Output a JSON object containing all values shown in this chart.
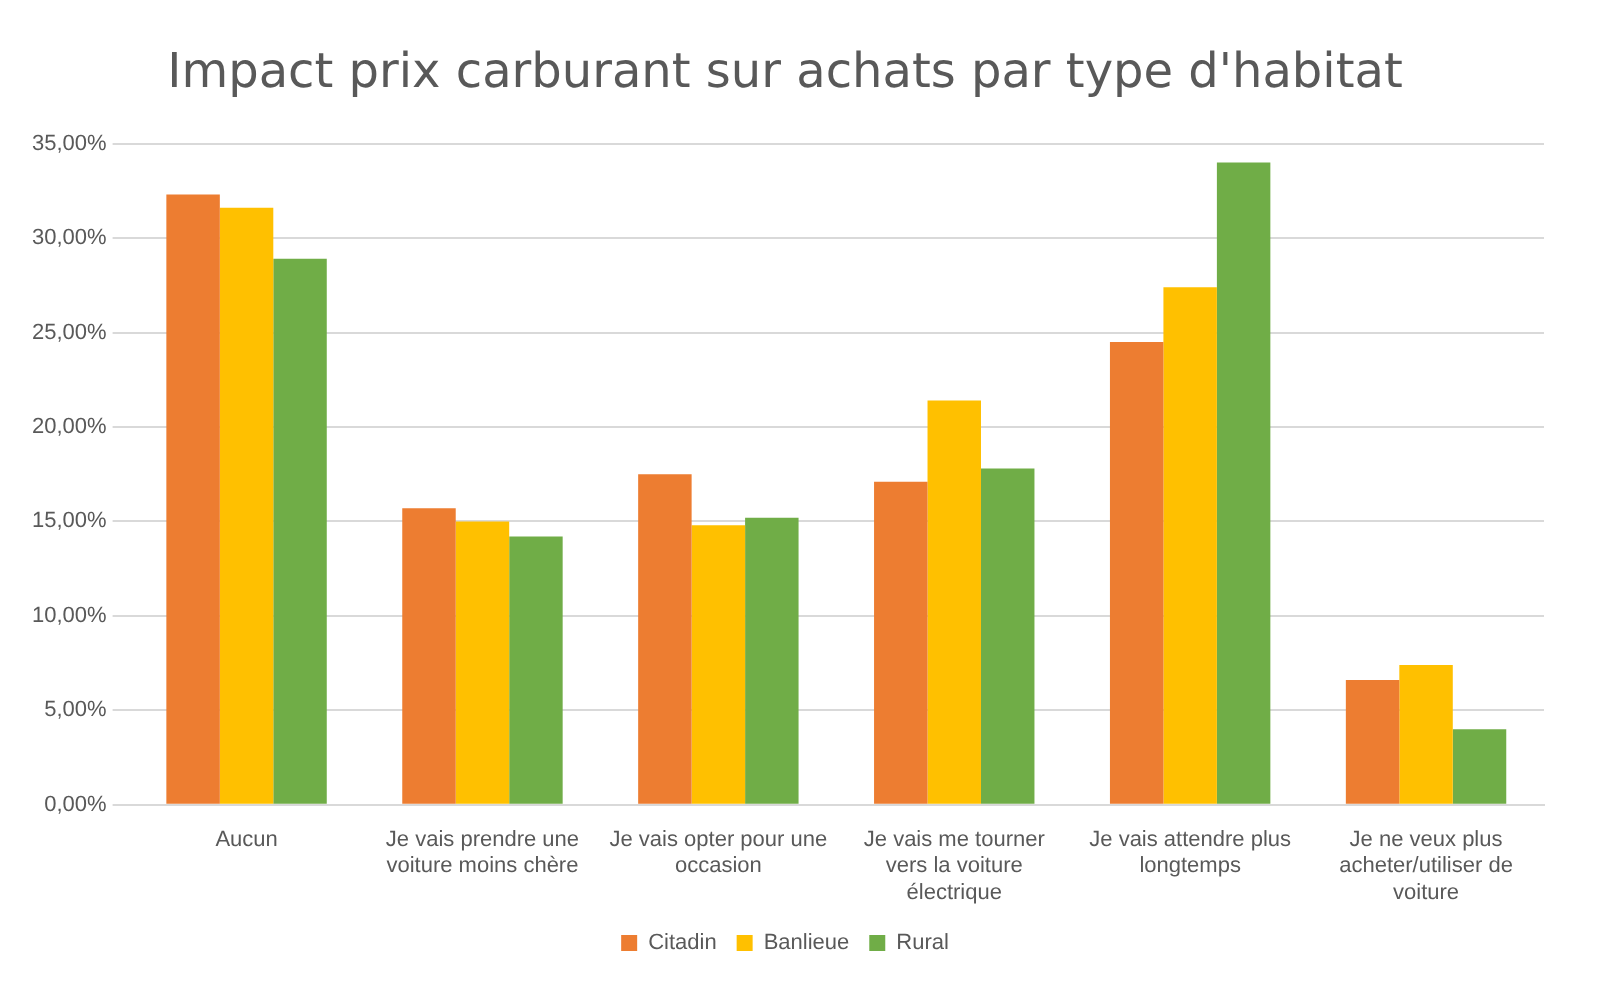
{
  "chart_data": {
    "type": "bar",
    "title": "Impact prix carburant sur achats par type d'habitat",
    "categories": [
      "Aucun",
      "Je vais prendre une voiture moins chère",
      "Je vais opter pour une occasion",
      "Je vais me tourner vers la voiture électrique",
      "Je vais attendre plus longtemps",
      "Je ne veux plus acheter/utiliser de voiture"
    ],
    "series": [
      {
        "name": "Citadin",
        "color": "#ed7d31",
        "values": [
          32.3,
          15.7,
          17.5,
          17.1,
          24.5,
          6.6
        ]
      },
      {
        "name": "Banlieue",
        "color": "#ffc000",
        "values": [
          31.6,
          15.0,
          14.8,
          21.4,
          27.4,
          7.4
        ]
      },
      {
        "name": "Rural",
        "color": "#70ad47",
        "values": [
          28.9,
          14.2,
          15.2,
          17.8,
          34.0,
          4.0
        ]
      }
    ],
    "ylim": [
      0,
      35
    ],
    "yticks": [
      {
        "value": 0,
        "label": "0,00%"
      },
      {
        "value": 5,
        "label": "5,00%"
      },
      {
        "value": 10,
        "label": "10,00%"
      },
      {
        "value": 15,
        "label": "15,00%"
      },
      {
        "value": 20,
        "label": "20,00%"
      },
      {
        "value": 25,
        "label": "25,00%"
      },
      {
        "value": 30,
        "label": "30,00%"
      },
      {
        "value": 35,
        "label": "35,00%"
      }
    ],
    "grid": "y",
    "legend": "bottom"
  }
}
